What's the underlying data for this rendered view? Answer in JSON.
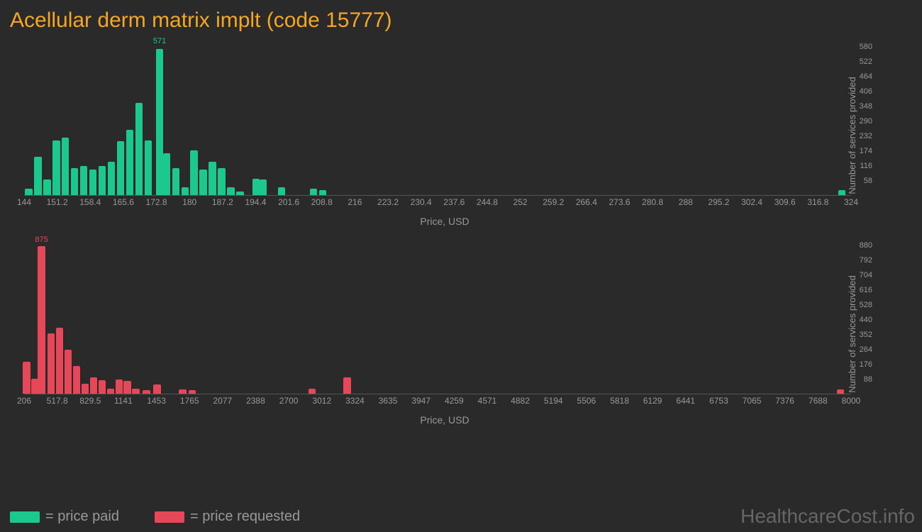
{
  "title": "Acellular derm matrix implt (code 15777)",
  "background_color": "#2a2a2a",
  "title_color": "#f5a623",
  "axis_text_color": "#999999",
  "watermark": "HealthcareCost.info",
  "legend": [
    {
      "label": "= price paid",
      "color": "#1bc98e"
    },
    {
      "label": "= price requested",
      "color": "#e64759"
    }
  ],
  "chart1": {
    "type": "bar",
    "color": "#1bc98e",
    "x_label": "Price, USD",
    "y_label": "Number of services provided",
    "x_min": 144,
    "x_max": 324,
    "x_tick_step": 7.2,
    "x_ticks": [
      144,
      151.2,
      158.4,
      165.6,
      172.8,
      180,
      187.2,
      194.4,
      201.6,
      208.8,
      216,
      223.2,
      230.4,
      237.6,
      244.8,
      252,
      259.2,
      266.4,
      273.6,
      280.8,
      288,
      295.2,
      302.4,
      309.6,
      316.8,
      324
    ],
    "y_min": 0,
    "y_max": 580,
    "y_ticks": [
      58,
      116,
      174,
      232,
      290,
      348,
      406,
      464,
      522,
      580
    ],
    "peak_label": "571",
    "peak_x": 173.5,
    "bar_width_units": 1.6,
    "bars": [
      {
        "x": 145,
        "y": 25
      },
      {
        "x": 147,
        "y": 150
      },
      {
        "x": 149,
        "y": 60
      },
      {
        "x": 151,
        "y": 215
      },
      {
        "x": 153,
        "y": 225
      },
      {
        "x": 155,
        "y": 105
      },
      {
        "x": 157,
        "y": 115
      },
      {
        "x": 159,
        "y": 100
      },
      {
        "x": 161,
        "y": 115
      },
      {
        "x": 163,
        "y": 130
      },
      {
        "x": 165,
        "y": 210
      },
      {
        "x": 167,
        "y": 255
      },
      {
        "x": 169,
        "y": 360
      },
      {
        "x": 171,
        "y": 215
      },
      {
        "x": 173.5,
        "y": 571
      },
      {
        "x": 175,
        "y": 165
      },
      {
        "x": 177,
        "y": 105
      },
      {
        "x": 179,
        "y": 30
      },
      {
        "x": 181,
        "y": 175
      },
      {
        "x": 183,
        "y": 100
      },
      {
        "x": 185,
        "y": 130
      },
      {
        "x": 187,
        "y": 105
      },
      {
        "x": 189,
        "y": 30
      },
      {
        "x": 191,
        "y": 15
      },
      {
        "x": 194.5,
        "y": 65
      },
      {
        "x": 196,
        "y": 60
      },
      {
        "x": 200,
        "y": 30
      },
      {
        "x": 207,
        "y": 25
      },
      {
        "x": 209,
        "y": 20
      },
      {
        "x": 322,
        "y": 20
      }
    ]
  },
  "chart2": {
    "type": "bar",
    "color": "#e64759",
    "x_label": "Price, USD",
    "y_label": "Number of services provided",
    "x_min": 206,
    "x_max": 8000,
    "x_tick_step": 311.76,
    "x_ticks": [
      206,
      517.8,
      829.5,
      1141,
      1453,
      1765,
      2077,
      2388,
      2700,
      3012,
      3324,
      3635,
      3947,
      4259,
      4571,
      4882,
      5194,
      5506,
      5818,
      6129,
      6441,
      6753,
      7065,
      7376,
      7688,
      8000
    ],
    "y_min": 0,
    "y_max": 880,
    "y_ticks": [
      88,
      176,
      264,
      352,
      440,
      528,
      616,
      704,
      792,
      880
    ],
    "peak_label": "875",
    "peak_x": 370,
    "bar_width_units": 70,
    "bars": [
      {
        "x": 230,
        "y": 190
      },
      {
        "x": 310,
        "y": 90
      },
      {
        "x": 370,
        "y": 875
      },
      {
        "x": 460,
        "y": 360
      },
      {
        "x": 540,
        "y": 390
      },
      {
        "x": 620,
        "y": 260
      },
      {
        "x": 700,
        "y": 165
      },
      {
        "x": 780,
        "y": 60
      },
      {
        "x": 860,
        "y": 95
      },
      {
        "x": 940,
        "y": 80
      },
      {
        "x": 1020,
        "y": 30
      },
      {
        "x": 1100,
        "y": 85
      },
      {
        "x": 1180,
        "y": 75
      },
      {
        "x": 1260,
        "y": 30
      },
      {
        "x": 1360,
        "y": 20
      },
      {
        "x": 1460,
        "y": 55
      },
      {
        "x": 1700,
        "y": 25
      },
      {
        "x": 1790,
        "y": 20
      },
      {
        "x": 2920,
        "y": 30
      },
      {
        "x": 3250,
        "y": 95
      },
      {
        "x": 7900,
        "y": 25
      }
    ]
  }
}
